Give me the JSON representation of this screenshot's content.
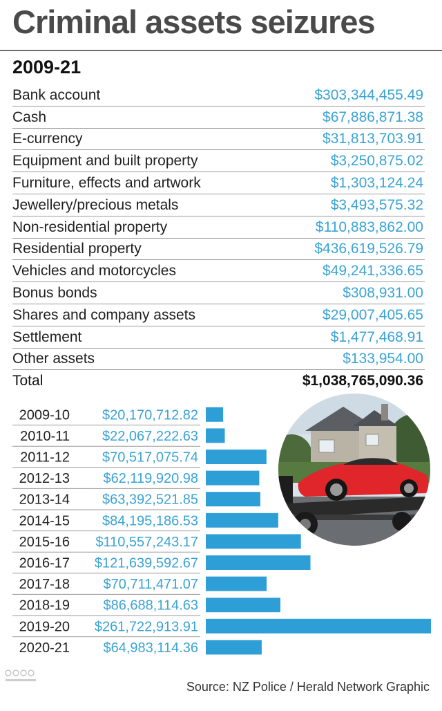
{
  "title": "Criminal assets seizures",
  "period": "2009-21",
  "assets": [
    {
      "label": "Bank account",
      "value": "$303,344,455.49"
    },
    {
      "label": "Cash",
      "value": "$67,886,871.38"
    },
    {
      "label": "E-currency",
      "value": "$31,813,703.91"
    },
    {
      "label": "Equipment and built property",
      "value": "$3,250,875.02"
    },
    {
      "label": "Furniture, effects and artwork",
      "value": "$1,303,124.24"
    },
    {
      "label": "Jewellery/precious metals",
      "value": "$3,493,575.32"
    },
    {
      "label": "Non-residential property",
      "value": "$110,883,862.00"
    },
    {
      "label": "Residential property",
      "value": "$436,619,526.79"
    },
    {
      "label": "Vehicles and motorcycles",
      "value": "$49,241,336.65"
    },
    {
      "label": "Bonus bonds",
      "value": "$308,931.00"
    },
    {
      "label": "Shares and company assets",
      "value": "$29,007,405.65"
    },
    {
      "label": "Settlement",
      "value": "$1,477,468.91"
    },
    {
      "label": "Other assets",
      "value": "$133,954.00"
    }
  ],
  "total": {
    "label": "Total",
    "value": "$1,038,765,090.36"
  },
  "chart_data": {
    "type": "bar",
    "orientation": "horizontal",
    "categories": [
      "2009-10",
      "2010-11",
      "2011-12",
      "2012-13",
      "2013-14",
      "2014-15",
      "2015-16",
      "2016-17",
      "2017-18",
      "2018-19",
      "2019-20",
      "2020-21"
    ],
    "values": [
      20170712.82,
      22067222.63,
      70517075.74,
      62119920.98,
      63392521.85,
      84195186.53,
      110557243.17,
      121639592.67,
      70711471.07,
      86688114.63,
      261722913.91,
      64983114.36
    ],
    "value_labels": [
      "$20,170,712.82",
      "$22,067,222.63",
      "$70,517,075.74",
      "$62,119,920.98",
      "$63,392,521.85",
      "$84,195,186.53",
      "$110,557,243.17",
      "$121,639,592.67",
      "$70,711,471.07",
      "$86,688,114.63",
      "$261,722,913.91",
      "$64,983,114.36"
    ],
    "bar_color": "#2e9fd6",
    "grid": false
  },
  "source": "Source: NZ Police / Herald Network Graphic",
  "colors": {
    "accent": "#3aa3d5",
    "bar": "#2e9fd6",
    "title": "#4a4a4a"
  }
}
